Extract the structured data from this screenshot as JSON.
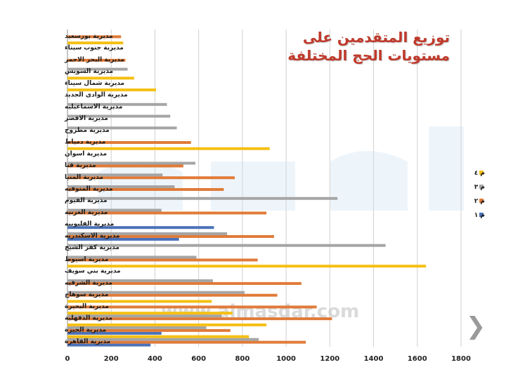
{
  "chart_data": {
    "type": "bar",
    "orientation": "horizontal",
    "title": "توزيع المتقدمين على مستويات الحج المختلفة",
    "watermark": "www.almasdar.com",
    "xlim": [
      0,
      1800
    ],
    "xticks": [
      0,
      200,
      400,
      600,
      800,
      1000,
      1200,
      1400,
      1600,
      1800
    ],
    "grid": "vertical",
    "legend_position": "right",
    "categories": [
      "مديرية القاهرة",
      "مديرية الجيزة",
      "مديرية الدقهلية",
      "مديرية البحيرة",
      "مديرية سوهاج",
      "مديرية الشرقيه",
      "مديرية بني سويف",
      "مديرية اسيوط",
      "مديرية كفر الشيخ",
      "مديرية الاسكندريه",
      "مديرية القليوبيه",
      "مديرية الغربية",
      "مديرية الفيوم",
      "مديرية المنوفيه",
      "مديرية المنيا",
      "مديرية قنا",
      "مديرية اسوان",
      "مديرية دمياط",
      "مديرية مطروح",
      "مديرية الاقصر",
      "مديرية الاسماعيليه",
      "مديرية الوادى الجديد",
      "مديرية شمال سيناء",
      "مديرية السويس",
      "مديرية البحر الاحمر",
      "مديرية جنوب سيناء",
      "مديرية بورسعيد"
    ],
    "series": [
      {
        "name": "م ١",
        "color": "#4a72b8",
        "values": [
          380,
          430,
          0,
          0,
          0,
          0,
          0,
          0,
          0,
          510,
          670,
          0,
          0,
          0,
          0,
          0,
          0,
          0,
          0,
          0,
          0,
          0,
          0,
          0,
          0,
          0,
          0
        ]
      },
      {
        "name": "م ٢",
        "color": "#e07b39",
        "values": [
          1090,
          745,
          1210,
          1140,
          960,
          1070,
          0,
          870,
          0,
          945,
          0,
          910,
          0,
          715,
          765,
          530,
          0,
          565,
          0,
          0,
          0,
          0,
          0,
          0,
          265,
          0,
          245
        ]
      },
      {
        "name": "م ٣",
        "color": "#a5a5a5",
        "values": [
          875,
          635,
          705,
          0,
          810,
          665,
          0,
          590,
          1455,
          730,
          0,
          430,
          1235,
          490,
          435,
          585,
          0,
          0,
          500,
          470,
          455,
          0,
          0,
          275,
          0,
          0,
          0
        ]
      },
      {
        "name": "م ٤",
        "color": "#f5c014",
        "values": [
          830,
          910,
          755,
          660,
          0,
          0,
          1640,
          0,
          0,
          0,
          0,
          0,
          0,
          0,
          0,
          0,
          925,
          0,
          0,
          0,
          0,
          405,
          305,
          0,
          0,
          255,
          0
        ]
      }
    ]
  }
}
